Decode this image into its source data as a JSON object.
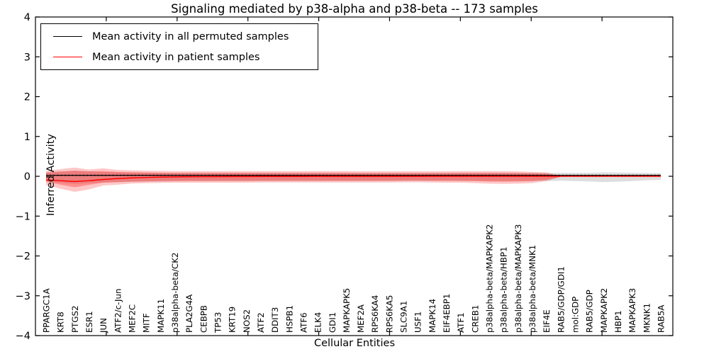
{
  "title": "Signaling mediated by p38-alpha and p38-beta -- 173 samples",
  "axes": {
    "x_label": "Cellular Entities",
    "y_label": "Inferred Activity",
    "y_tick_labels": [
      "4",
      "3",
      "2",
      "1",
      "0",
      "−1",
      "−2",
      "−3",
      "−4"
    ],
    "y_tick_values": [
      4,
      3,
      2,
      1,
      0,
      -1,
      -2,
      -3,
      -4
    ]
  },
  "legend": {
    "items": [
      {
        "label": "Mean activity in all permuted samples",
        "color": "#000000"
      },
      {
        "label": "Mean activity in patient samples",
        "color": "#ff0000"
      }
    ]
  },
  "colors": {
    "patient_line": "#ff0000",
    "permuted_line": "#000000",
    "patient_band": "rgba(255,0,0,0.22)",
    "patient_band_inner": "rgba(255,0,0,0.28)",
    "permuted_band": "rgba(0,0,0,0.13)",
    "spine": "#000000"
  },
  "chart_data": {
    "type": "line",
    "title": "Signaling mediated by p38-alpha and p38-beta -- 173 samples",
    "xlabel": "Cellular Entities",
    "ylabel": "Inferred Activity",
    "ylim": [
      -4,
      4
    ],
    "grid": false,
    "legend_position": "upper left",
    "categories": [
      "PPARGC1A",
      "KRT8",
      "PTGS2",
      "ESR1",
      "JUN",
      "ATF2/c-Jun",
      "MEF2C",
      "MITF",
      "MAPK11",
      "p38alpha-beta/CK2",
      "PLA2G4A",
      "CEBPB",
      "TP53",
      "KRT19",
      "NOS2",
      "ATF2",
      "DDIT3",
      "HSPB1",
      "ATF6",
      "ELK4",
      "GDI1",
      "MAPKAPK5",
      "MEF2A",
      "RPS6KA4",
      "RPS6KA5",
      "SLC9A1",
      "USF1",
      "MAPK14",
      "EIF4EBP1",
      "ATF1",
      "CREB1",
      "p38alpha-beta/MAPKAPK2",
      "p38alpha-beta/HBP1",
      "p38alpha-beta/MAPKAPK3",
      "p38alpha-beta/MNK1",
      "EIF4E",
      "RAB5/GDP/GDI1",
      "mol:GDP",
      "RAB5/GDP",
      "MAPKAPK2",
      "HBP1",
      "MAPKAPK3",
      "MKNK1",
      "RAB5A"
    ],
    "series": [
      {
        "name": "Mean activity in all permuted samples",
        "values": [
          0.025,
          0.025,
          0.025,
          0.025,
          0.025,
          0.025,
          0.025,
          0.025,
          0.025,
          0.025,
          0.025,
          0.025,
          0.025,
          0.025,
          0.025,
          0.025,
          0.025,
          0.025,
          0.025,
          0.025,
          0.025,
          0.025,
          0.025,
          0.025,
          0.025,
          0.025,
          0.025,
          0.025,
          0.025,
          0.025,
          0.025,
          0.025,
          0.025,
          0.025,
          0.025,
          0.025,
          0.025,
          0.025,
          0.025,
          0.025,
          0.025,
          0.025,
          0.025,
          0.025
        ]
      },
      {
        "name": "Mean activity in patient samples",
        "values": [
          -0.09,
          -0.11,
          -0.13,
          -0.11,
          -0.08,
          -0.055,
          -0.04,
          -0.03,
          -0.02,
          -0.015,
          -0.012,
          -0.01,
          -0.008,
          -0.007,
          -0.006,
          -0.005,
          -0.005,
          -0.004,
          -0.004,
          -0.003,
          -0.003,
          -0.003,
          -0.002,
          -0.002,
          -0.002,
          -0.002,
          -0.002,
          -0.001,
          -0.001,
          -0.001,
          -0.001,
          -0.001,
          -0.001,
          -0.001,
          -0.001,
          -0.001,
          -0.001,
          -0.001,
          -0.001,
          -0.001,
          -0.001,
          -0.001,
          -0.001,
          -0.001
        ]
      }
    ],
    "bands": {
      "permuted_high": [
        0.11,
        0.125,
        0.14,
        0.125,
        0.11,
        0.1,
        0.095,
        0.09,
        0.085,
        0.085,
        0.085,
        0.085,
        0.085,
        0.085,
        0.085,
        0.085,
        0.085,
        0.085,
        0.085,
        0.085,
        0.085,
        0.085,
        0.085,
        0.085,
        0.085,
        0.085,
        0.085,
        0.085,
        0.085,
        0.085,
        0.085,
        0.085,
        0.085,
        0.085,
        0.085,
        0.085,
        0.09,
        0.09,
        0.09,
        0.1,
        0.095,
        0.09,
        0.085,
        0.08
      ],
      "permuted_low": [
        -0.145,
        -0.165,
        -0.19,
        -0.17,
        -0.155,
        -0.15,
        -0.14,
        -0.135,
        -0.13,
        -0.125,
        -0.12,
        -0.12,
        -0.12,
        -0.12,
        -0.12,
        -0.12,
        -0.12,
        -0.12,
        -0.12,
        -0.12,
        -0.12,
        -0.12,
        -0.12,
        -0.12,
        -0.12,
        -0.12,
        -0.115,
        -0.115,
        -0.115,
        -0.115,
        -0.115,
        -0.115,
        -0.115,
        -0.115,
        -0.115,
        -0.115,
        -0.11,
        -0.12,
        -0.13,
        -0.145,
        -0.135,
        -0.12,
        -0.1,
        -0.09
      ],
      "patient_outer_high": [
        0.13,
        0.18,
        0.22,
        0.17,
        0.2,
        0.16,
        0.15,
        0.14,
        0.135,
        0.13,
        0.13,
        0.13,
        0.13,
        0.13,
        0.13,
        0.13,
        0.13,
        0.13,
        0.13,
        0.13,
        0.13,
        0.13,
        0.125,
        0.125,
        0.125,
        0.125,
        0.125,
        0.125,
        0.125,
        0.13,
        0.13,
        0.13,
        0.13,
        0.125,
        0.11,
        0.1,
        0.01,
        null,
        null,
        null,
        null,
        null,
        null,
        null
      ],
      "patient_outer_low": [
        -0.22,
        -0.31,
        -0.39,
        -0.33,
        -0.23,
        -0.21,
        -0.18,
        -0.17,
        -0.165,
        -0.16,
        -0.16,
        -0.16,
        -0.16,
        -0.16,
        -0.16,
        -0.155,
        -0.155,
        -0.155,
        -0.155,
        -0.155,
        -0.155,
        -0.155,
        -0.155,
        -0.155,
        -0.155,
        -0.15,
        -0.15,
        -0.155,
        -0.16,
        -0.16,
        -0.17,
        -0.185,
        -0.19,
        -0.185,
        -0.17,
        -0.12,
        -0.015,
        null,
        null,
        null,
        null,
        null,
        null,
        null
      ],
      "patient_inner_high": [
        0.09,
        0.115,
        0.14,
        0.125,
        0.13,
        0.11,
        0.1,
        0.095,
        0.09,
        0.085,
        0.085,
        0.085,
        0.085,
        0.085,
        0.085,
        0.085,
        0.085,
        0.085,
        0.085,
        0.085,
        0.085,
        0.085,
        0.08,
        0.08,
        0.08,
        0.08,
        0.08,
        0.08,
        0.08,
        0.085,
        0.085,
        0.085,
        0.085,
        0.08,
        0.075,
        0.065,
        0.005,
        null,
        null,
        null,
        null,
        null,
        null,
        null
      ],
      "patient_inner_low": [
        -0.13,
        -0.21,
        -0.275,
        -0.215,
        -0.16,
        -0.145,
        -0.13,
        -0.125,
        -0.12,
        -0.115,
        -0.115,
        -0.115,
        -0.115,
        -0.115,
        -0.115,
        -0.11,
        -0.11,
        -0.11,
        -0.11,
        -0.11,
        -0.11,
        -0.11,
        -0.11,
        -0.11,
        -0.11,
        -0.105,
        -0.105,
        -0.11,
        -0.11,
        -0.115,
        -0.12,
        -0.13,
        -0.135,
        -0.13,
        -0.12,
        -0.09,
        -0.01,
        null,
        null,
        null,
        null,
        null,
        null,
        null
      ]
    }
  }
}
